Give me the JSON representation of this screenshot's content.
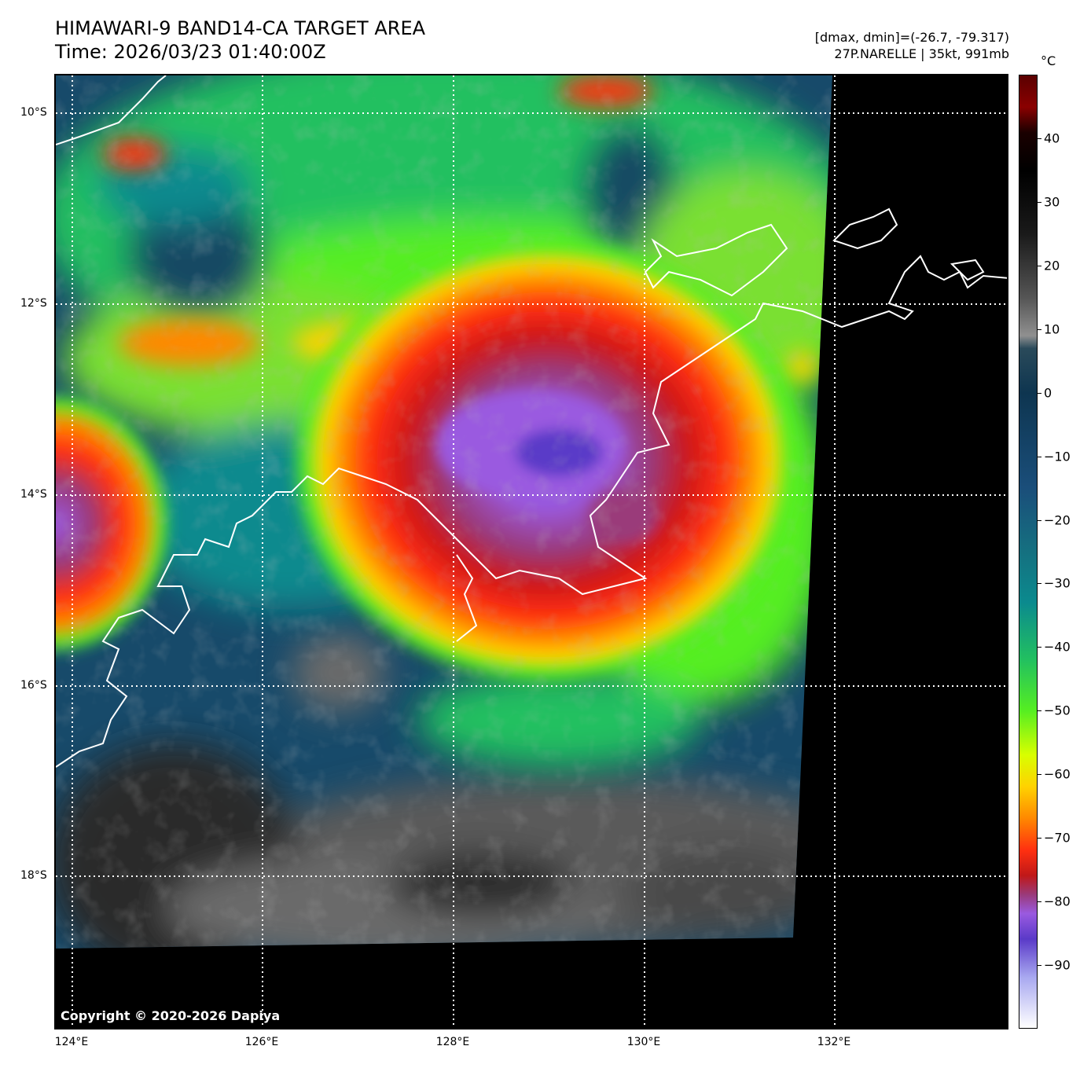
{
  "header": {
    "title_line1": "HIMAWARI-9 BAND14-CA TARGET AREA",
    "title_line2": "Time: 2026/03/23 01:40:00Z",
    "info_line1": "[dmax, dmin]=(-26.7, -79.317)",
    "info_line2": "27P.NARELLE | 35kt, 991mb"
  },
  "map": {
    "lat_labels": [
      "10°S",
      "12°S",
      "14°S",
      "16°S",
      "18°S"
    ],
    "lon_labels": [
      "124°E",
      "126°E",
      "128°E",
      "130°E",
      "132°E"
    ],
    "copyright": "Copyright © 2020-2026 Dapiya"
  },
  "colorbar": {
    "unit": "°C",
    "tick_labels": [
      "40",
      "30",
      "20",
      "10",
      "0",
      "−10",
      "−20",
      "−30",
      "−40",
      "−50",
      "−60",
      "−70",
      "−80",
      "−90"
    ],
    "range_max": 50,
    "range_min": -100,
    "stops": [
      {
        "t": 50,
        "c": "#5a0000"
      },
      {
        "t": 45,
        "c": "#8a0000"
      },
      {
        "t": 41,
        "c": "#1a0000"
      },
      {
        "t": 35,
        "c": "#000000"
      },
      {
        "t": 25,
        "c": "#1a1a1a"
      },
      {
        "t": 15,
        "c": "#555555"
      },
      {
        "t": 9,
        "c": "#909090"
      },
      {
        "t": 7,
        "c": "#2a4a5a"
      },
      {
        "t": 0,
        "c": "#0e3550"
      },
      {
        "t": -15,
        "c": "#1a4e7a"
      },
      {
        "t": -25,
        "c": "#157080"
      },
      {
        "t": -33,
        "c": "#0b8a8e"
      },
      {
        "t": -42,
        "c": "#22c060"
      },
      {
        "t": -50,
        "c": "#55ee22"
      },
      {
        "t": -57,
        "c": "#d8ff00"
      },
      {
        "t": -62,
        "c": "#ffd200"
      },
      {
        "t": -67,
        "c": "#ff8800"
      },
      {
        "t": -72,
        "c": "#ff3010"
      },
      {
        "t": -76,
        "c": "#c01818"
      },
      {
        "t": -79,
        "c": "#9a3a7a"
      },
      {
        "t": -82,
        "c": "#9a5ae0"
      },
      {
        "t": -86,
        "c": "#5a3ac8"
      },
      {
        "t": -92,
        "c": "#a8a8f0"
      },
      {
        "t": -100,
        "c": "#ffffff"
      }
    ]
  }
}
